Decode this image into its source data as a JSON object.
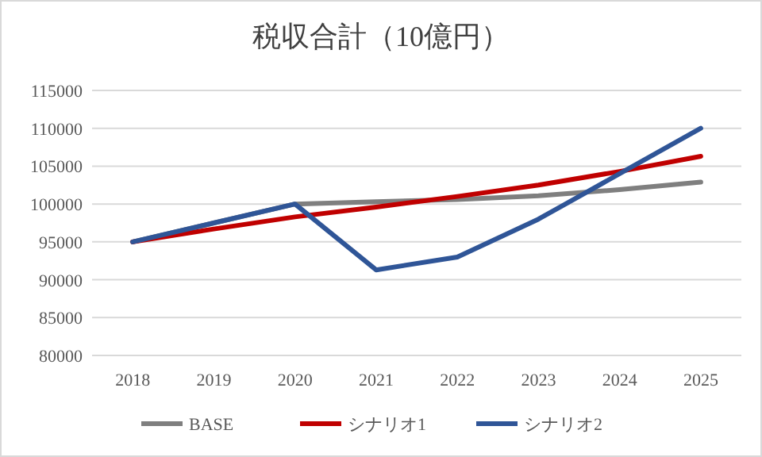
{
  "chart_data": {
    "type": "line",
    "title": "税収合計（10億円）",
    "categories": [
      "2018",
      "2019",
      "2020",
      "2021",
      "2022",
      "2023",
      "2024",
      "2025"
    ],
    "series": [
      {
        "name": "BASE",
        "color": "#7f7f7f",
        "values": [
          95000,
          97500,
          100000,
          100300,
          100600,
          101100,
          101900,
          102900
        ]
      },
      {
        "name": "シナリオ1",
        "color": "#c00000",
        "values": [
          95000,
          96700,
          98300,
          99600,
          101000,
          102500,
          104300,
          106300
        ]
      },
      {
        "name": "シナリオ2",
        "color": "#2f5597",
        "values": [
          95000,
          97500,
          100000,
          91300,
          93000,
          98000,
          104000,
          110000
        ]
      }
    ],
    "ylim": [
      80000,
      115000
    ],
    "yticks": [
      80000,
      85000,
      90000,
      95000,
      100000,
      105000,
      110000,
      115000
    ],
    "grid": "y",
    "legend": "bottom",
    "marker": "none",
    "line_style": "solid"
  }
}
